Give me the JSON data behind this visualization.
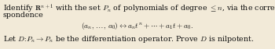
{
  "background_color": "#f2ead8",
  "text_color": "#111111",
  "line1": "Identify $\\mathbf{R}^{n+1}$ with the set $P_n$ of polynomials of degree $\\leq n$, via the corre-",
  "line2": "spondence",
  "line3": "$(a_n,\\, \\ldots,\\, a_0) \\leftrightarrow a_n t^n + \\cdots + a_1 t + a_0.$",
  "line4": "Let $D\\colon P_n \\to P_n$ be the differentiation operator. Prove $D$ is nilpotent.",
  "fontsize": 6.8,
  "fig_width": 3.5,
  "fig_height": 0.63,
  "dpi": 100
}
